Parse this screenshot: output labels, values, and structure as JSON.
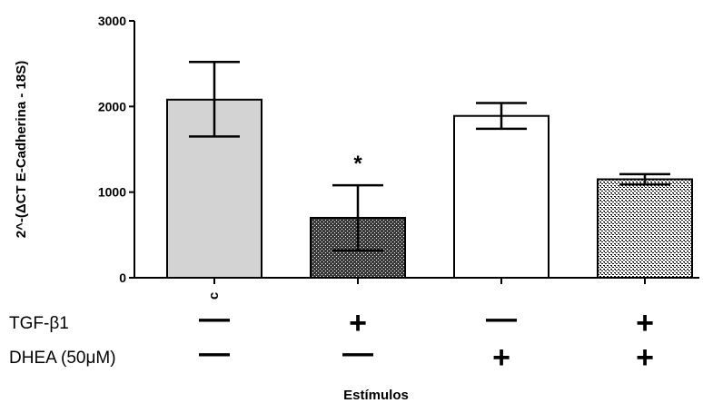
{
  "chart_data": {
    "type": "bar",
    "categories": [
      "c",
      "",
      "",
      ""
    ],
    "values": [
      2080,
      700,
      1890,
      1150
    ],
    "error_upper": [
      2520,
      1080,
      2040,
      1210
    ],
    "error_lower": [
      1650,
      320,
      1740,
      1090
    ],
    "bar_fills": [
      "#d3d3d3",
      "#5a5a5a",
      "#ffffff",
      "#9a9a9a"
    ],
    "annotations": [
      "",
      "*",
      "",
      ""
    ],
    "ylabel": "2^-(ΔCT  E-Cadherina - 18S)",
    "xlabel": "Estímulos",
    "ylim": [
      0,
      3000
    ],
    "yticks": [
      0,
      1000,
      2000,
      3000
    ],
    "grid": false,
    "treatment_rows": [
      {
        "label": "TGF-β1",
        "signs": [
          "—",
          "+",
          "—",
          "+"
        ]
      },
      {
        "label": "DHEA (50μM)",
        "signs": [
          "—",
          "—",
          "+",
          "+"
        ]
      }
    ]
  }
}
